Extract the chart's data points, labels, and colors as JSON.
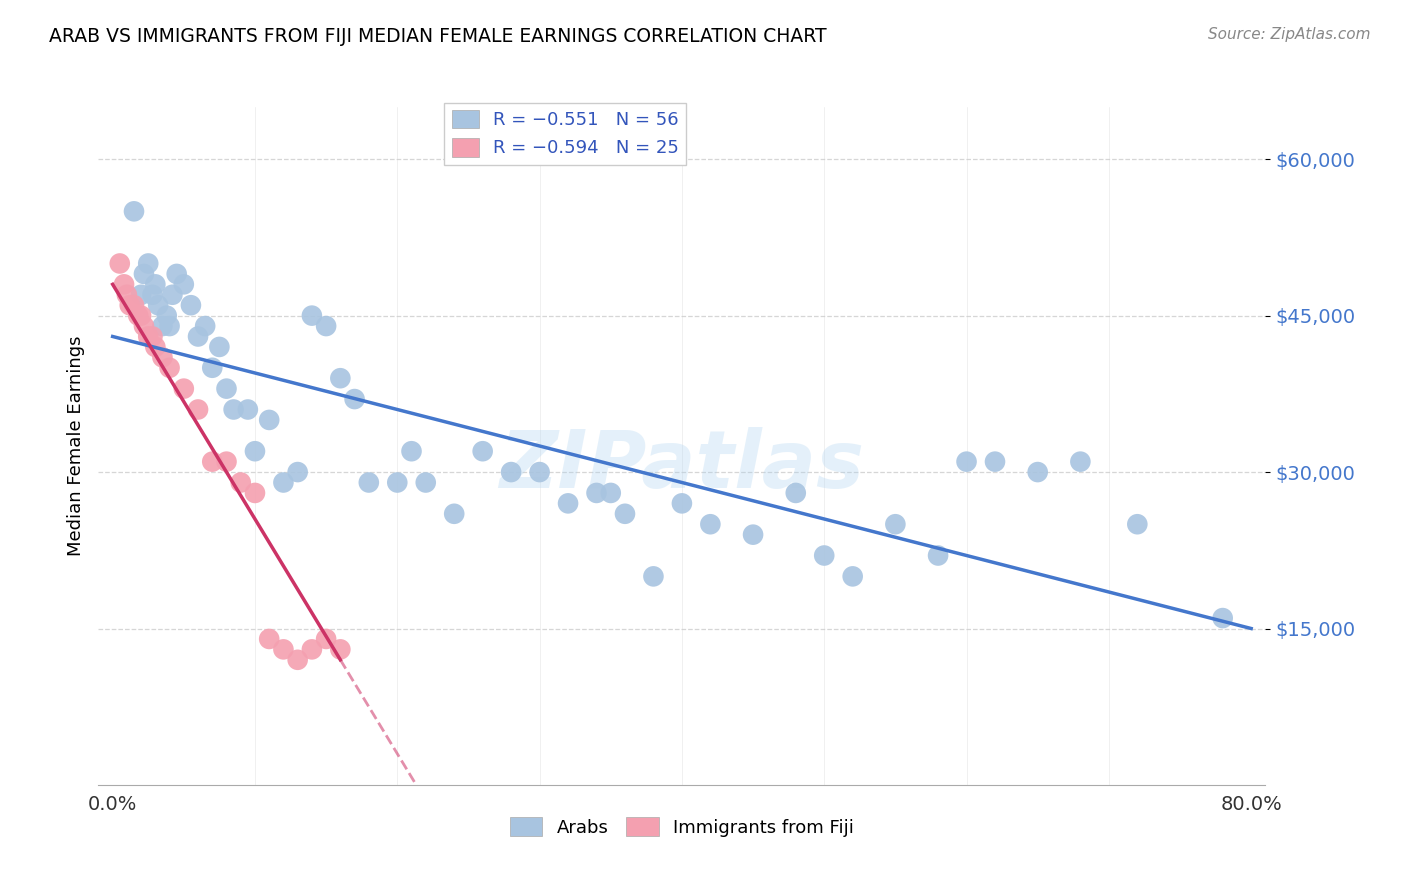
{
  "title": "ARAB VS IMMIGRANTS FROM FIJI MEDIAN FEMALE EARNINGS CORRELATION CHART",
  "source": "Source: ZipAtlas.com",
  "ylabel": "Median Female Earnings",
  "yticks": [
    15000,
    30000,
    45000,
    60000
  ],
  "ytick_labels": [
    "$15,000",
    "$30,000",
    "$45,000",
    "$60,000"
  ],
  "legend_blue_label": "R = −0.551   N = 56",
  "legend_pink_label": "R = −0.594   N = 25",
  "legend_bottom_label1": "Arabs",
  "legend_bottom_label2": "Immigrants from Fiji",
  "arab_color": "#a8c4e0",
  "fiji_color": "#f4a0b0",
  "trend_blue": "#4477cc",
  "trend_pink": "#cc3366",
  "background": "#ffffff",
  "watermark": "ZIPatlas",
  "arab_x": [
    1.5,
    2.0,
    2.2,
    2.5,
    2.8,
    3.0,
    3.2,
    3.5,
    3.8,
    4.0,
    4.2,
    4.5,
    5.0,
    5.5,
    6.0,
    6.5,
    7.0,
    7.5,
    8.0,
    8.5,
    9.5,
    10.0,
    11.0,
    12.0,
    13.0,
    14.0,
    15.0,
    16.0,
    17.0,
    18.0,
    20.0,
    21.0,
    22.0,
    24.0,
    26.0,
    28.0,
    30.0,
    32.0,
    34.0,
    35.0,
    36.0,
    38.0,
    40.0,
    42.0,
    45.0,
    48.0,
    50.0,
    52.0,
    55.0,
    58.0,
    60.0,
    62.0,
    65.0,
    68.0,
    72.0,
    78.0
  ],
  "arab_y": [
    55000,
    47000,
    49000,
    50000,
    47000,
    48000,
    46000,
    44000,
    45000,
    44000,
    47000,
    49000,
    48000,
    46000,
    43000,
    44000,
    40000,
    42000,
    38000,
    36000,
    36000,
    32000,
    35000,
    29000,
    30000,
    45000,
    44000,
    39000,
    37000,
    29000,
    29000,
    32000,
    29000,
    26000,
    32000,
    30000,
    30000,
    27000,
    28000,
    28000,
    26000,
    20000,
    27000,
    25000,
    24000,
    28000,
    22000,
    20000,
    25000,
    22000,
    31000,
    31000,
    30000,
    31000,
    25000,
    16000
  ],
  "fiji_x": [
    0.5,
    0.8,
    1.0,
    1.2,
    1.5,
    1.8,
    2.0,
    2.2,
    2.5,
    2.8,
    3.0,
    3.5,
    4.0,
    5.0,
    6.0,
    7.0,
    8.0,
    9.0,
    10.0,
    11.0,
    12.0,
    13.0,
    14.0,
    15.0,
    16.0
  ],
  "fiji_y": [
    50000,
    48000,
    47000,
    46000,
    46000,
    45000,
    45000,
    44000,
    43000,
    43000,
    42000,
    41000,
    40000,
    38000,
    36000,
    31000,
    31000,
    29000,
    28000,
    14000,
    13000,
    12000,
    13000,
    14000,
    13000
  ],
  "blue_trend_y0": 43000,
  "blue_trend_y80": 15000,
  "pink_trend_y0": 48000,
  "pink_trend_y16": 12000,
  "xmin": 0,
  "xmax": 80,
  "ymin": 0,
  "ymax": 65000
}
